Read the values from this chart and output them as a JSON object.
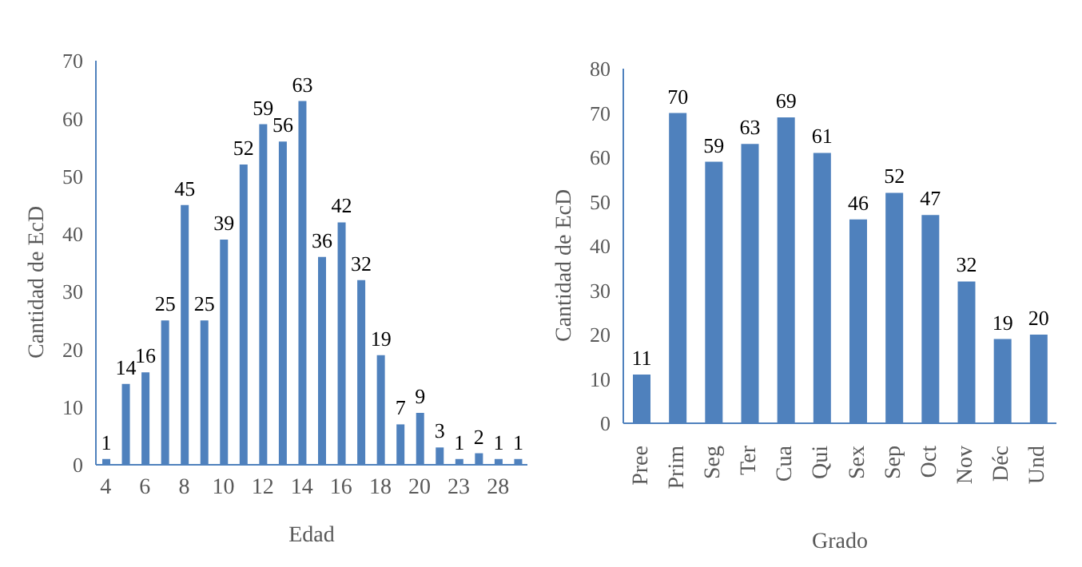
{
  "chart_data": [
    {
      "type": "bar",
      "xlabel": "Edad",
      "ylabel": "Cantidad de EcD",
      "categories": [
        "4",
        null,
        "6",
        null,
        "8",
        null,
        "10",
        null,
        "12",
        null,
        "14",
        null,
        "16",
        null,
        "18",
        null,
        "20",
        null,
        "23",
        null,
        "28",
        null
      ],
      "values": [
        1,
        14,
        16,
        25,
        45,
        25,
        39,
        52,
        59,
        56,
        63,
        36,
        42,
        32,
        19,
        7,
        9,
        3,
        1,
        2,
        1,
        1
      ],
      "color": "#4f81bd",
      "ylim": [
        0,
        70
      ],
      "yticks": [
        0,
        10,
        20,
        30,
        40,
        50,
        60,
        70
      ],
      "data_labels": true,
      "grid": false,
      "legend": false
    },
    {
      "type": "bar",
      "xlabel": "Grado",
      "ylabel": "Cantidad de EcD",
      "categories": [
        "Pree",
        "Prim",
        "Seg",
        "Ter",
        "Cua",
        "Qui",
        "Sex",
        "Sep",
        "Oct",
        "Nov",
        "Déc",
        "Und"
      ],
      "values": [
        11,
        70,
        59,
        63,
        69,
        61,
        46,
        52,
        47,
        32,
        19,
        20
      ],
      "color": "#4f81bd",
      "ylim": [
        0,
        80
      ],
      "yticks": [
        0,
        10,
        20,
        30,
        40,
        50,
        60,
        70,
        80
      ],
      "data_labels": true,
      "grid": false,
      "legend": false
    }
  ]
}
